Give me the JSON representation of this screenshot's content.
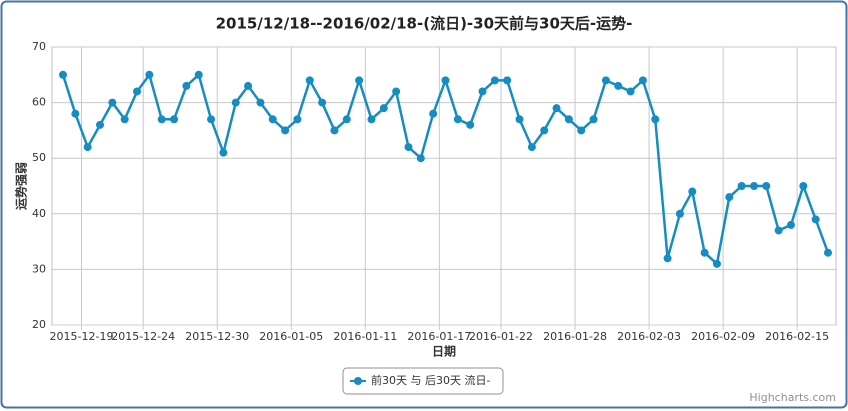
{
  "chart_data": {
    "type": "line",
    "title": "2015/12/18--2016/02/18-(流日)-30天前与30天后-运势-",
    "x_label": "日期",
    "y_label": "运势强弱",
    "credits": "Highcharts.com",
    "categories": [
      null,
      "2015-12-19",
      null,
      null,
      null,
      null,
      "2015-12-24",
      null,
      null,
      null,
      null,
      null,
      "2015-12-30",
      null,
      null,
      null,
      null,
      null,
      "2016-01-05",
      null,
      null,
      null,
      null,
      null,
      "2016-01-11",
      null,
      null,
      null,
      null,
      null,
      "2016-01-17",
      null,
      null,
      null,
      null,
      "2016-01-22",
      null,
      null,
      null,
      null,
      null,
      "2016-01-28",
      null,
      null,
      null,
      null,
      null,
      "2016-02-03",
      null,
      null,
      null,
      null,
      null,
      "2016-02-09",
      null,
      null,
      null,
      null,
      null,
      "2016-02-15",
      null,
      null,
      null
    ],
    "series": [
      {
        "name": "前30天 与 后30天 流日-",
        "color": "#168dc2",
        "values": [
          65,
          58,
          52,
          56,
          60,
          57,
          62,
          65,
          57,
          57,
          63,
          65,
          57,
          51,
          60,
          63,
          60,
          57,
          55,
          57,
          64,
          60,
          55,
          57,
          64,
          57,
          59,
          62,
          52,
          50,
          58,
          64,
          57,
          56,
          62,
          64,
          64,
          57,
          52,
          55,
          59,
          57,
          55,
          57,
          64,
          63,
          62,
          64,
          57,
          32,
          40,
          44,
          33,
          31,
          43,
          45,
          45,
          45,
          37,
          38,
          45,
          39,
          33
        ]
      }
    ],
    "ylim": [
      20,
      70
    ],
    "yticks": [
      20,
      30,
      40,
      50,
      60,
      70
    ],
    "grid": true
  }
}
